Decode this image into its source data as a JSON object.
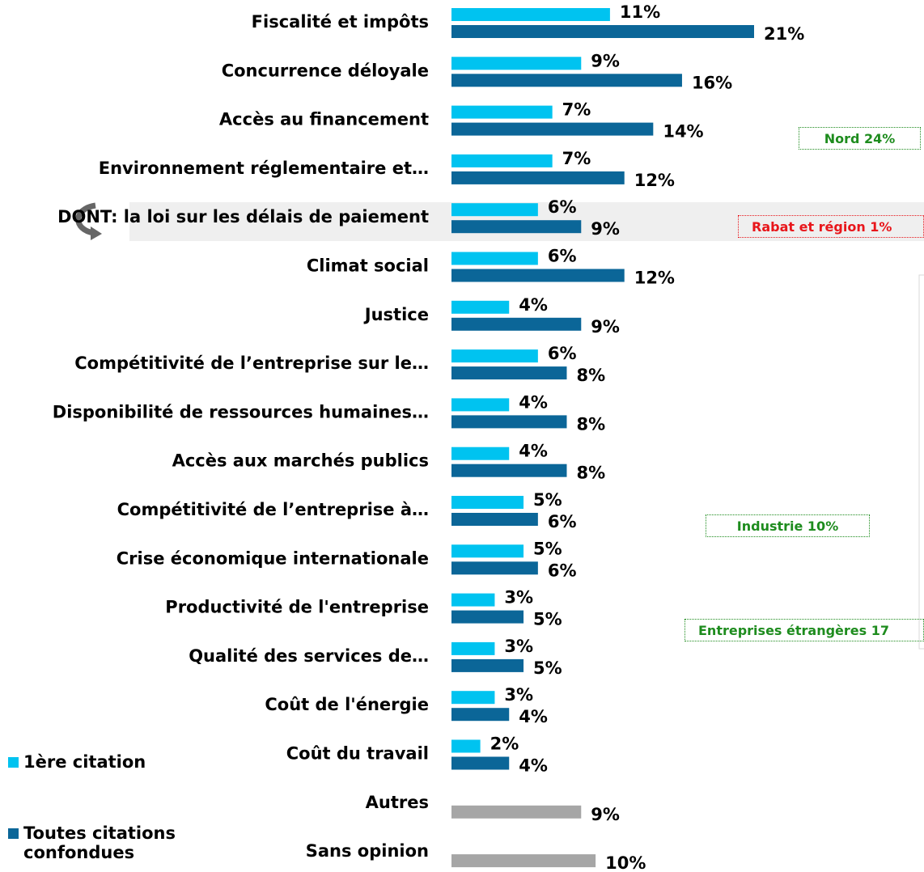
{
  "chart_data": {
    "type": "bar",
    "orientation": "horizontal",
    "categories": [
      "Fiscalité et impôts",
      "Concurrence déloyale",
      "Accès au financement",
      "Environnement réglementaire et…",
      "DONT: la loi sur les délais de paiement",
      "Climat social",
      "Justice",
      "Compétitivité de l’entreprise sur le…",
      "Disponibilité de ressources humaines…",
      "Accès aux marchés publics",
      "Compétitivité de l’entreprise à…",
      "Crise économique internationale",
      "Productivité de l'entreprise",
      "Qualité des services de…",
      "Coût de l'énergie",
      "Coût du travail",
      "Autres",
      "Sans opinion"
    ],
    "series": [
      {
        "name": "1ère citation",
        "color": "#00c3f0",
        "values": [
          11,
          9,
          7,
          7,
          6,
          6,
          4,
          6,
          4,
          4,
          5,
          5,
          3,
          3,
          3,
          2,
          null,
          null
        ],
        "value_labels": [
          "11%",
          "9%",
          "7%",
          "7%",
          "6%",
          "6%",
          "4%",
          "6%",
          "4%",
          "4%",
          "5%",
          "5%",
          "3%",
          "3%",
          "3%",
          "2%",
          null,
          null
        ]
      },
      {
        "name": "Toutes citations confondues",
        "color": "#0b6698",
        "values": [
          21,
          16,
          14,
          12,
          9,
          12,
          9,
          8,
          8,
          8,
          6,
          6,
          5,
          5,
          4,
          4,
          null,
          null
        ],
        "value_labels": [
          "21%",
          "16%",
          "14%",
          "12%",
          "9%",
          "12%",
          "9%",
          "8%",
          "8%",
          "8%",
          "6%",
          "6%",
          "5%",
          "5%",
          "4%",
          "4%",
          null,
          null
        ]
      },
      {
        "color": "#a6a6a6",
        "values": [
          null,
          null,
          null,
          null,
          null,
          null,
          null,
          null,
          null,
          null,
          null,
          null,
          null,
          null,
          null,
          null,
          9,
          10
        ],
        "value_labels": [
          null,
          null,
          null,
          null,
          null,
          null,
          null,
          null,
          null,
          null,
          null,
          null,
          null,
          null,
          null,
          null,
          "9%",
          "10%"
        ]
      }
    ],
    "xlim": [
      0,
      21
    ],
    "annotations": [
      {
        "text": "Nord 24%",
        "color": "#1e8c1e"
      },
      {
        "text": "Rabat et région 1%",
        "color": "#e8161b"
      },
      {
        "text": "Industrie 10%",
        "color": "#1e8c1e"
      },
      {
        "text": "Entreprises étrangères 17",
        "color": "#1e8c1e"
      }
    ]
  }
}
